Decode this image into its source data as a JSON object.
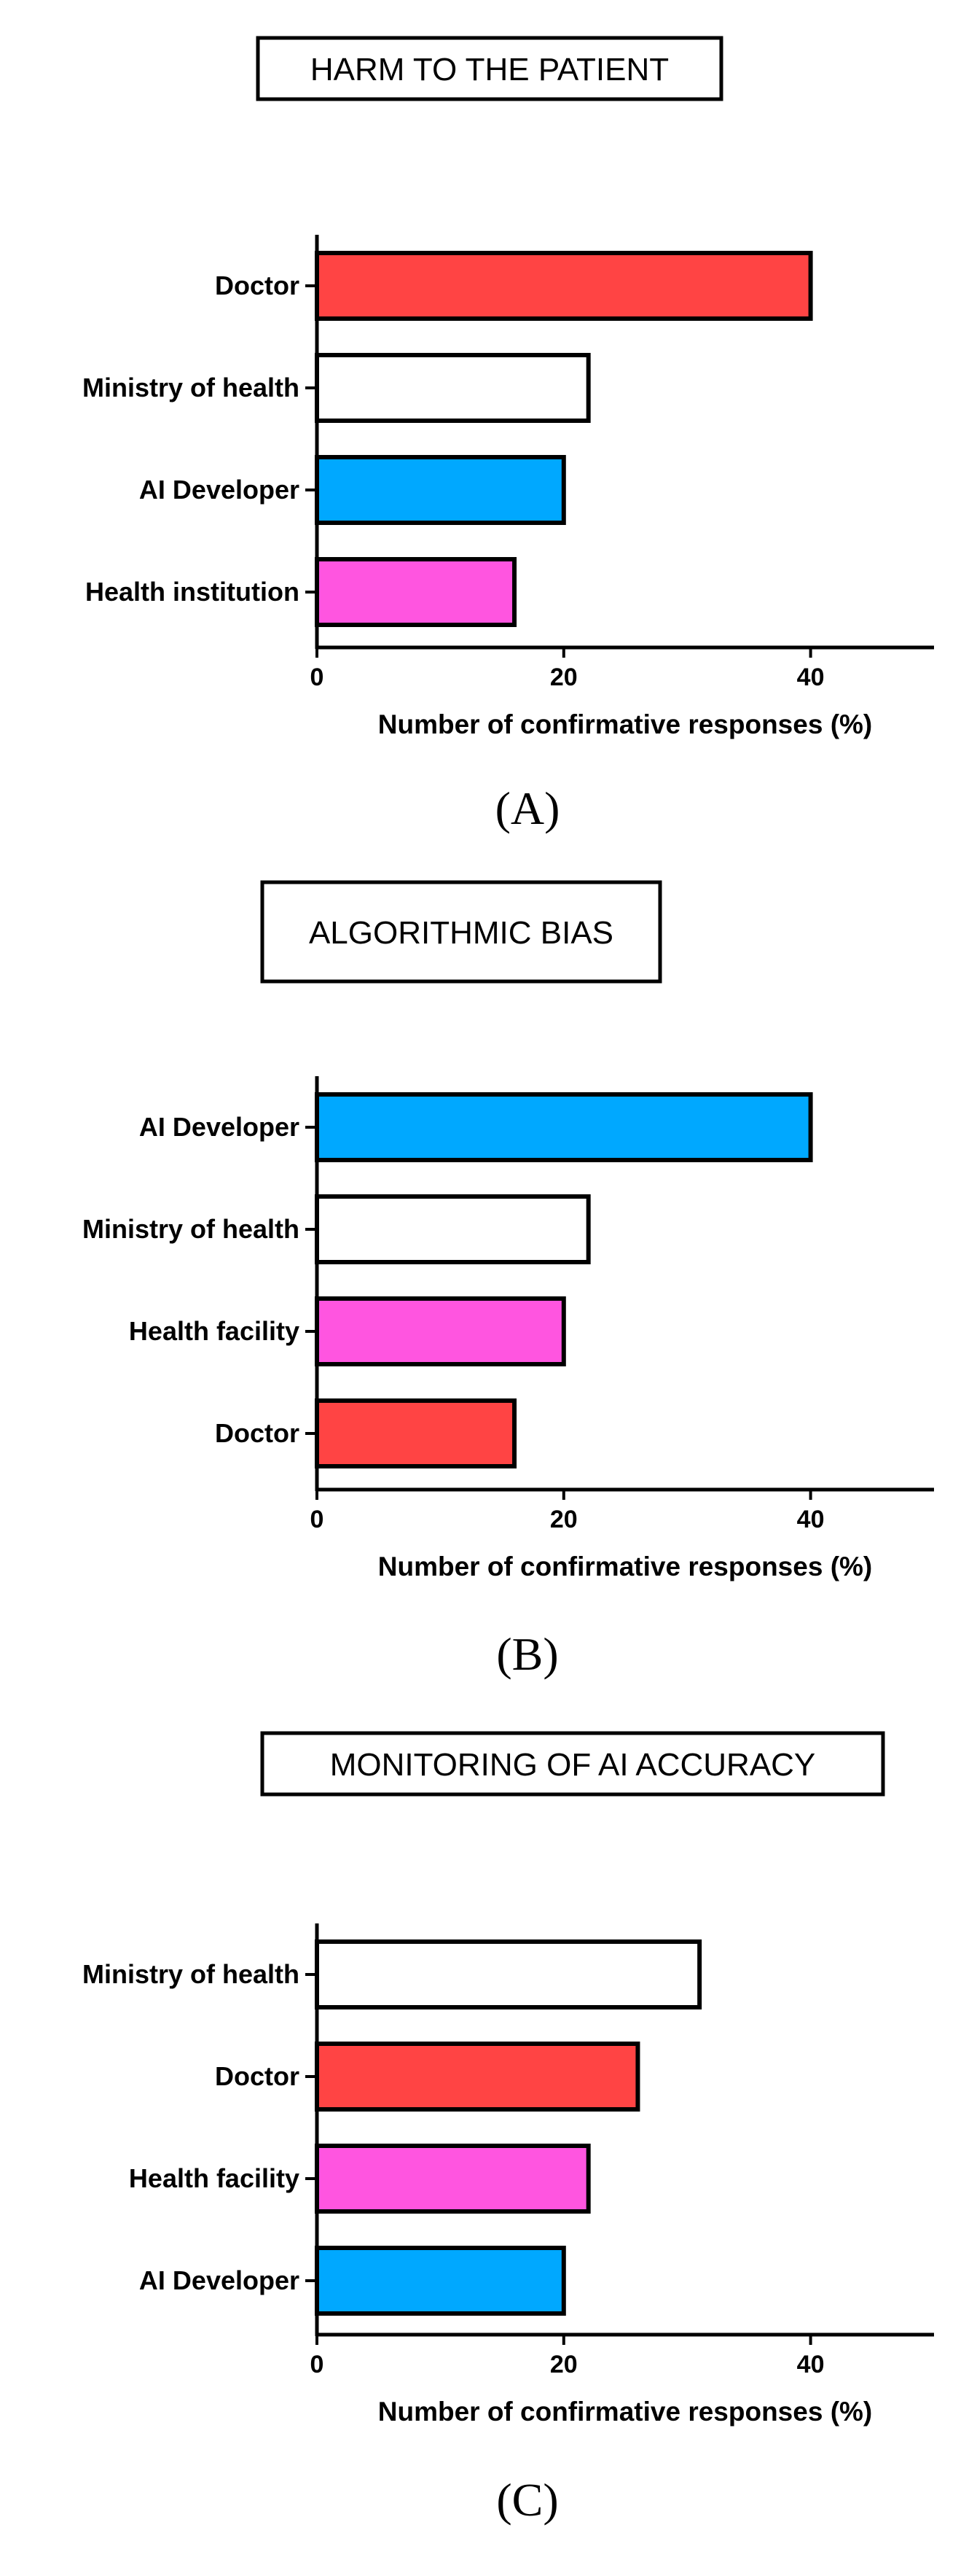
{
  "chart_data": [
    {
      "type": "bar",
      "orientation": "horizontal",
      "title": "HARM TO THE PATIENT",
      "panel_label": "(A)",
      "categories": [
        "Doctor",
        "Ministry of health",
        "AI Developer",
        "Health institution"
      ],
      "values": [
        40,
        22,
        20,
        16
      ],
      "colors": [
        "#ff4444",
        "#ffffff",
        "#00a8ff",
        "#ff55e0"
      ],
      "xlabel": "Number of confirmative responses (%)",
      "ylabel": "",
      "xlim": [
        0,
        50
      ],
      "xticks": [
        "0",
        "20",
        "40"
      ],
      "grid": false,
      "legend": "none"
    },
    {
      "type": "bar",
      "orientation": "horizontal",
      "title": "ALGORITHMIC BIAS",
      "panel_label": "(B)",
      "categories": [
        "AI Developer",
        "Ministry of health",
        "Health facility",
        "Doctor"
      ],
      "values": [
        40,
        22,
        20,
        16
      ],
      "colors": [
        "#00a8ff",
        "#ffffff",
        "#ff55e0",
        "#ff4444"
      ],
      "xlabel": "Number of confirmative responses (%)",
      "ylabel": "",
      "xlim": [
        0,
        50
      ],
      "xticks": [
        "0",
        "20",
        "40"
      ],
      "grid": false,
      "legend": "none"
    },
    {
      "type": "bar",
      "orientation": "horizontal",
      "title": "MONITORING OF AI ACCURACY",
      "panel_label": "(C)",
      "categories": [
        "Ministry of health",
        "Doctor",
        "Health facility",
        "AI Developer"
      ],
      "values": [
        31,
        26,
        22,
        20
      ],
      "colors": [
        "#ffffff",
        "#ff4444",
        "#ff55e0",
        "#00a8ff"
      ],
      "xlabel": "Number of confirmative responses (%)",
      "ylabel": "",
      "xlim": [
        0,
        50
      ],
      "xticks": [
        "0",
        "20",
        "40"
      ],
      "grid": false,
      "legend": "none"
    }
  ]
}
